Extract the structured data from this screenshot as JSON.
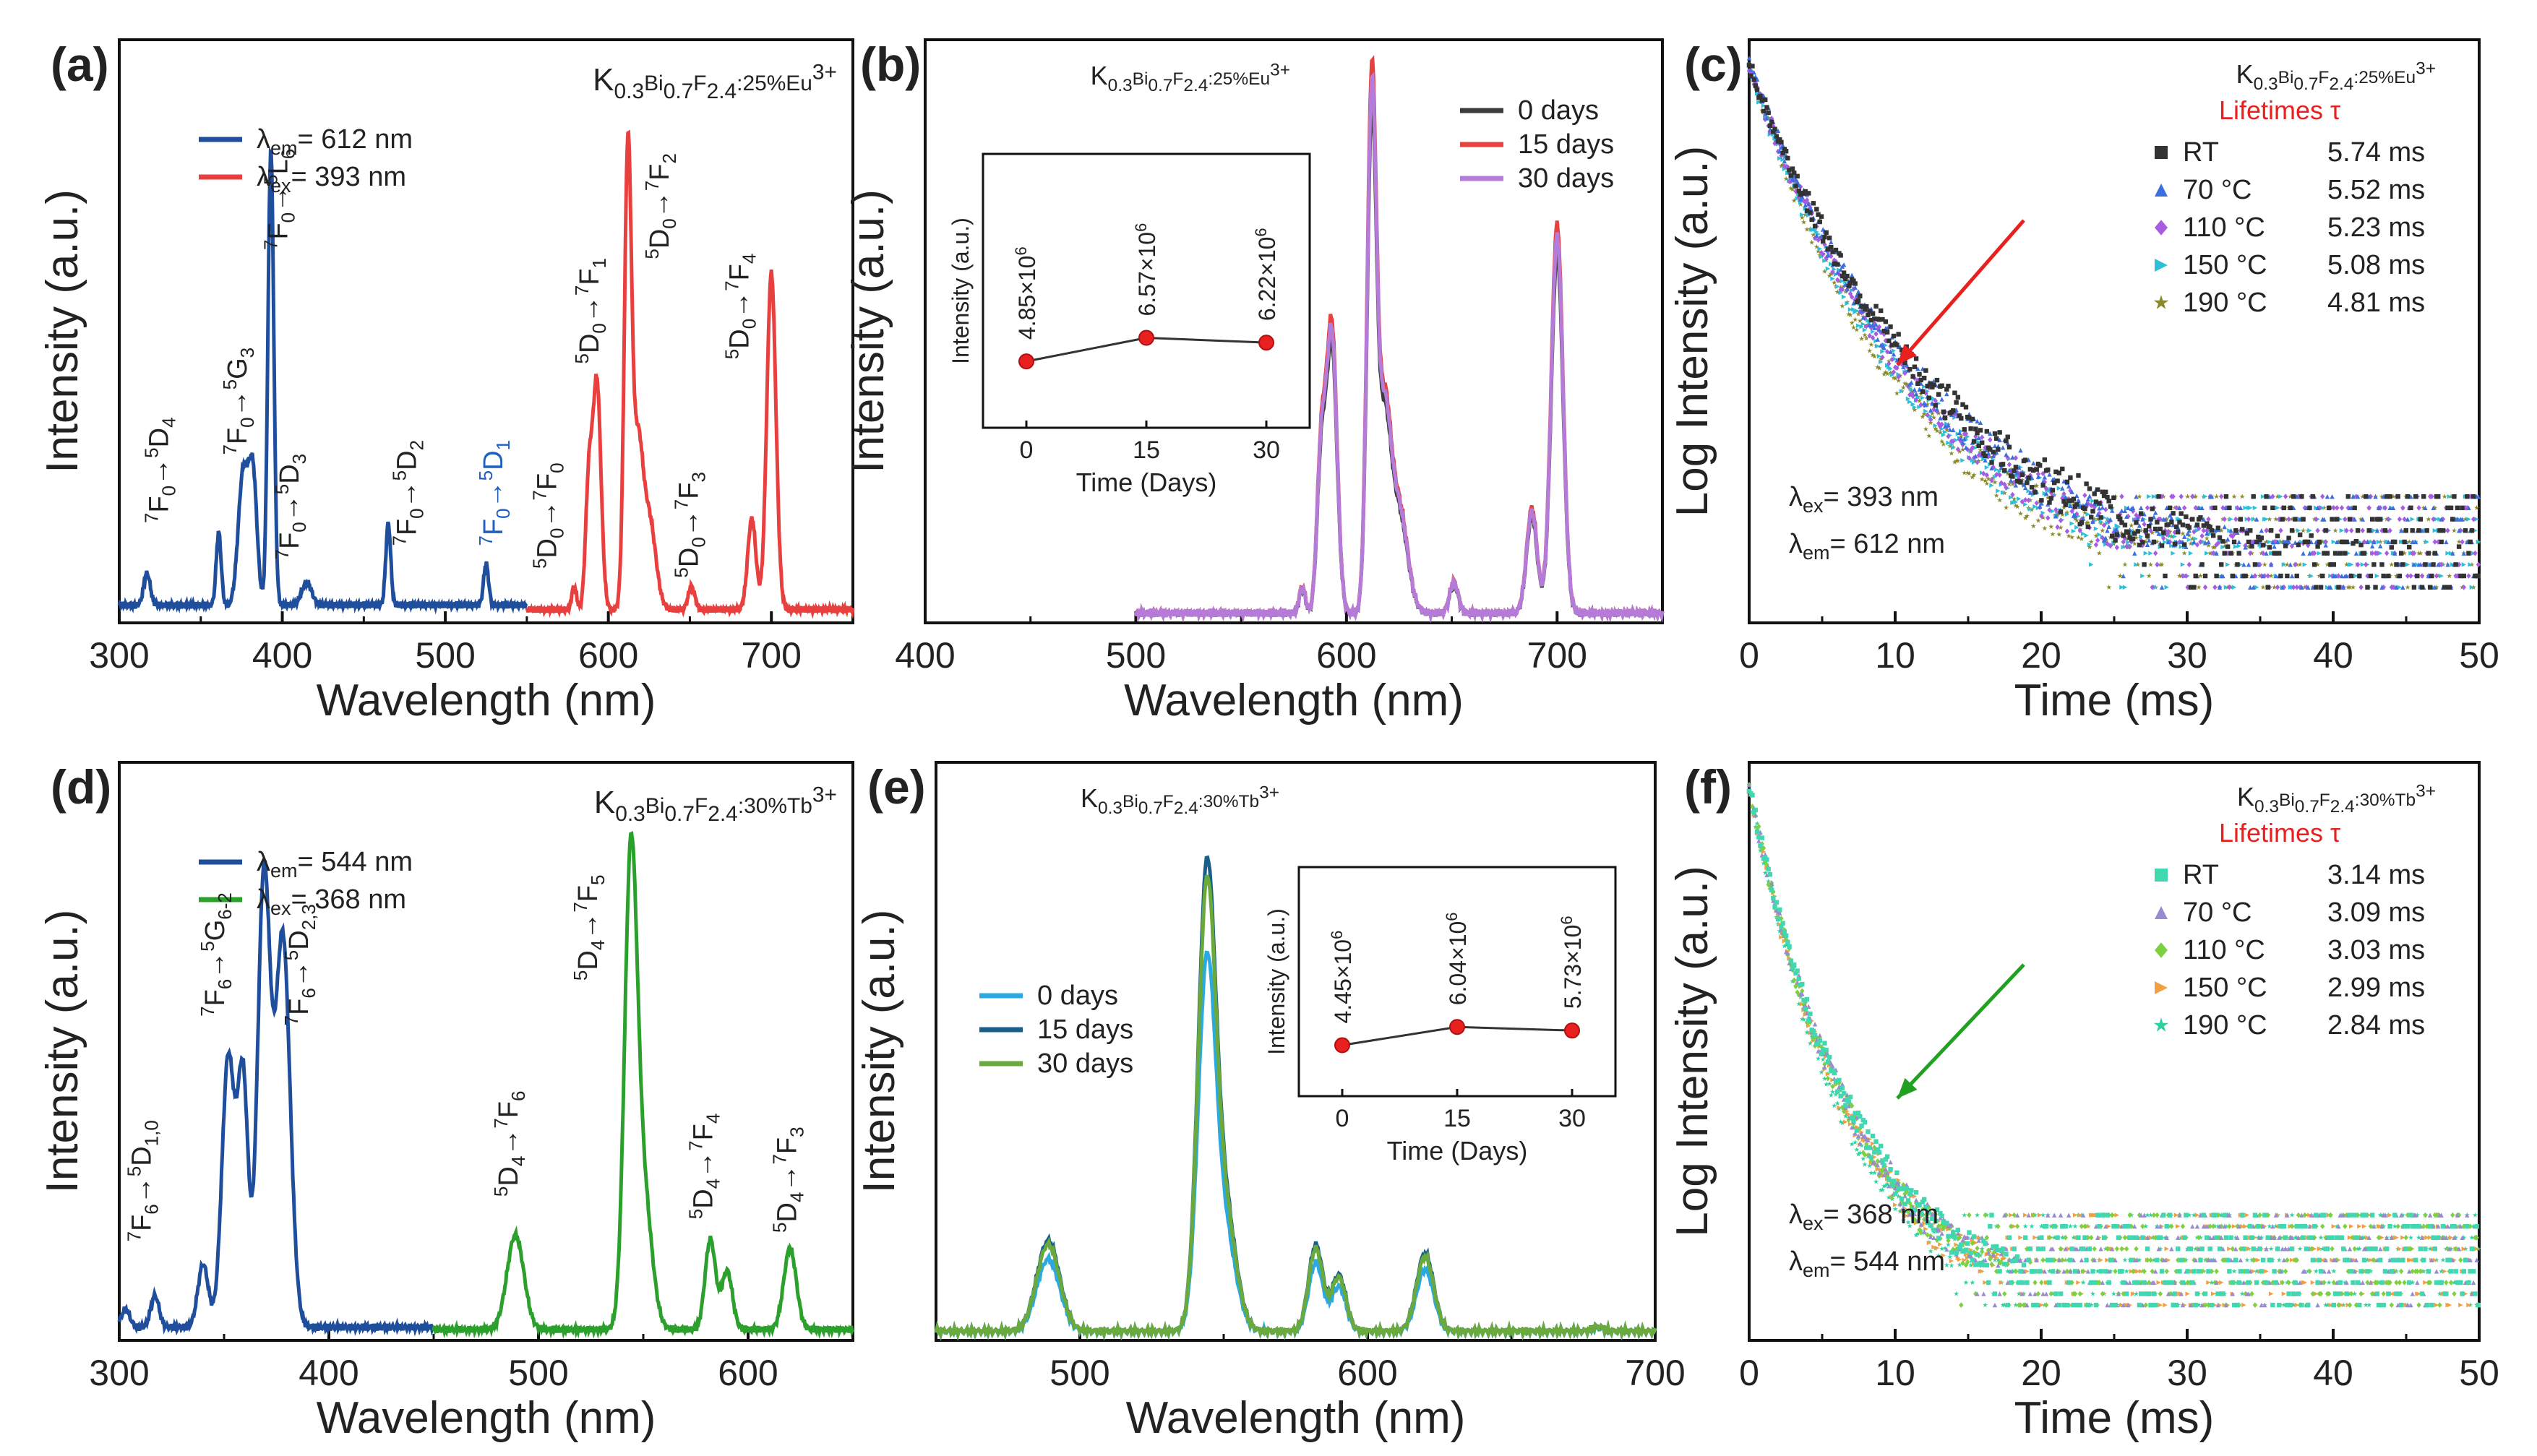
{
  "colors": {
    "eu_em": "#1f4e9c",
    "eu_ex": "#e8403f",
    "d0": "#3c3c3c",
    "d15": "#e8403f",
    "d30": "#b57bd8",
    "tb_em": "#1f4e9c",
    "tb_ex": "#2ca02c",
    "te0": "#2ba9e0",
    "te15": "#1a5f8c",
    "te30": "#6aaa3c",
    "arrow_c": "#e82020",
    "arrow_f": "#22a022",
    "life_title": "#e82020",
    "eu_label_d1": "#1f5fbf"
  },
  "chart_data": [
    {
      "id": "a",
      "type": "line",
      "panel_label": "(a)",
      "xlabel": "Wavelength (nm)",
      "ylabel": "Intensity (a.u.)",
      "xlim": [
        300,
        750
      ],
      "xticks": [
        "300",
        "400",
        "500",
        "600",
        "700"
      ],
      "ylim": [
        0,
        1
      ],
      "sample": {
        "base": "K",
        "s1": "0.3",
        "m": "Bi",
        "s2": "0.7",
        "f": "F",
        "s3": "2.4",
        "dop": ":25%Eu",
        "sup": "3+"
      },
      "legend": [
        {
          "name": "λ",
          "sub": "em",
          "rest": "= 612 nm",
          "color_key": "eu_em"
        },
        {
          "name": "λ",
          "sub": "ex",
          "rest": "= 393 nm",
          "color_key": "eu_ex"
        }
      ],
      "series": [
        {
          "name": "excitation (λem = 612 nm)",
          "color_key": "eu_em",
          "x_range": [
            300,
            550
          ],
          "peaks": [
            [
              317,
              0.07,
              2
            ],
            [
              361,
              0.16,
              1.5
            ],
            [
              376,
              0.29,
              3
            ],
            [
              382,
              0.28,
              2.5
            ],
            [
              393,
              1.0,
              1.8
            ],
            [
              415,
              0.05,
              3
            ],
            [
              465,
              0.18,
              1.5
            ],
            [
              525,
              0.09,
              1.5
            ]
          ],
          "baseline": 0.02
        },
        {
          "name": "emission (λex = 393 nm)",
          "color_key": "eu_ex",
          "x_range": [
            550,
            750
          ],
          "peaks": [
            [
              579,
              0.05,
              1.5
            ],
            [
              588,
              0.27,
              2
            ],
            [
              593,
              0.5,
              2.5
            ],
            [
              612,
              1.0,
              2.2
            ],
            [
              618,
              0.34,
              3
            ],
            [
              625,
              0.2,
              4
            ],
            [
              651,
              0.05,
              2
            ],
            [
              688,
              0.2,
              2.5
            ],
            [
              700,
              0.74,
              2.8
            ]
          ],
          "baseline": 0.01
        }
      ],
      "annotations": [
        {
          "pre": "7",
          "a": "F",
          "as": "0",
          "post": "5",
          "b": "D",
          "bs": "4",
          "x": 330,
          "y": 0.2
        },
        {
          "pre": "7",
          "a": "F",
          "as": "0",
          "post": "5",
          "b": "G",
          "bs": "3",
          "x": 378,
          "y": 0.35
        },
        {
          "pre": "7",
          "a": "F",
          "as": "0",
          "post": "5",
          "b": "L",
          "bs": "6",
          "x": 403,
          "y": 0.8
        },
        {
          "pre": "7",
          "a": "F",
          "as": "0",
          "post": "5",
          "b": "D",
          "bs": "3",
          "x": 410,
          "y": 0.12
        },
        {
          "pre": "7",
          "a": "F",
          "as": "0",
          "post": "5",
          "b": "D",
          "bs": "2",
          "x": 482,
          "y": 0.15
        },
        {
          "pre": "7",
          "a": "F",
          "as": "0",
          "post": "5",
          "b": "D",
          "bs": "1",
          "x": 535,
          "y": 0.15,
          "color_key": "eu_label_d1"
        },
        {
          "pre": "5",
          "a": "D",
          "as": "0",
          "post": "7",
          "b": "F",
          "bs": "0",
          "x": 568,
          "y": 0.1
        },
        {
          "pre": "5",
          "a": "D",
          "as": "0",
          "post": "7",
          "b": "F",
          "bs": "1",
          "x": 594,
          "y": 0.55
        },
        {
          "pre": "5",
          "a": "D",
          "as": "0",
          "post": "7",
          "b": "F",
          "bs": "2",
          "x": 637,
          "y": 0.78
        },
        {
          "pre": "5",
          "a": "D",
          "as": "0",
          "post": "7",
          "b": "F",
          "bs": "3",
          "x": 655,
          "y": 0.08
        },
        {
          "pre": "5",
          "a": "D",
          "as": "0",
          "post": "7",
          "b": "F",
          "bs": "4",
          "x": 686,
          "y": 0.56
        }
      ]
    },
    {
      "id": "b",
      "type": "line",
      "panel_label": "(b)",
      "xlabel": "Wavelength (nm)",
      "ylabel": "Intensity (a.u.)",
      "xlim": [
        400,
        750
      ],
      "xticks": [
        "400",
        "500",
        "600",
        "700"
      ],
      "ylim": [
        0,
        1
      ],
      "sample": {
        "base": "K",
        "s1": "0.3",
        "m": "Bi",
        "s2": "0.7",
        "f": "F",
        "s3": "2.4",
        "dop": ":25%Eu",
        "sup": "3+"
      },
      "legend": [
        "0 days",
        "15 days",
        "30 days"
      ],
      "series": [
        {
          "name": "0 days",
          "color_key": "d0",
          "scale": 0.93
        },
        {
          "name": "15 days",
          "color_key": "d15",
          "scale": 1.0
        },
        {
          "name": "30 days",
          "color_key": "d30",
          "scale": 0.97
        }
      ],
      "x_range": [
        500,
        750
      ],
      "peaks": [
        [
          579,
          0.05,
          1.5
        ],
        [
          588,
          0.3,
          2
        ],
        [
          593,
          0.55,
          2.5
        ],
        [
          612,
          1.0,
          2.2
        ],
        [
          618,
          0.37,
          3
        ],
        [
          625,
          0.2,
          4
        ],
        [
          651,
          0.06,
          2
        ],
        [
          688,
          0.2,
          2.5
        ],
        [
          700,
          0.74,
          2.8
        ]
      ],
      "inset": {
        "type": "line",
        "xlabel": "Time (Days)",
        "ylabel": "Intensity (a.u.)",
        "x": [
          0,
          15,
          30
        ],
        "xticks": [
          "0",
          "15",
          "30"
        ],
        "values": [
          4.85,
          6.57,
          6.22
        ],
        "labels": [
          "4.85×10",
          "6.57×10",
          "6.22×10"
        ],
        "label_sup": "6",
        "ylim": [
          0,
          20
        ]
      }
    },
    {
      "id": "c",
      "type": "scatter",
      "panel_label": "(c)",
      "xlabel": "Time (ms)",
      "ylabel": "Log Intensity (a.u.)",
      "xlim": [
        0,
        50
      ],
      "xticks": [
        "0",
        "10",
        "20",
        "30",
        "40",
        "50"
      ],
      "sample": {
        "base": "K",
        "s1": "0.3",
        "m": "Bi",
        "s2": "0.7",
        "f": "F",
        "s3": "2.4",
        "dop": ":25%Eu",
        "sup": "3+"
      },
      "legend_title": "Lifetimes τ",
      "legend": [
        {
          "name": "RT",
          "value": "5.74 ms",
          "color": "#333333",
          "marker": "square"
        },
        {
          "name": "70 °C",
          "value": "5.52 ms",
          "color": "#3b6fe0",
          "marker": "triangle"
        },
        {
          "name": "110 °C",
          "value": "5.23 ms",
          "color": "#a75de0",
          "marker": "diamond"
        },
        {
          "name": "150 °C",
          "value": "5.08 ms",
          "color": "#2bc0d8",
          "marker": "tri-right"
        },
        {
          "name": "190 °C",
          "value": "4.81 ms",
          "color": "#8a8a2a",
          "marker": "star"
        }
      ],
      "tau": [
        5.74,
        5.52,
        5.23,
        5.08,
        4.81
      ],
      "excitation": {
        "sub": "ex",
        "rest": "= 393 nm"
      },
      "emission": {
        "sub": "em",
        "rest": "= 612 nm"
      }
    },
    {
      "id": "d",
      "type": "line",
      "panel_label": "(d)",
      "xlabel": "Wavelength (nm)",
      "ylabel": "Intensity (a.u.)",
      "xlim": [
        300,
        650
      ],
      "xticks": [
        "300",
        "400",
        "500",
        "600"
      ],
      "ylim": [
        0,
        1
      ],
      "sample": {
        "base": "K",
        "s1": "0.3",
        "m": "Bi",
        "s2": "0.7",
        "f": "F",
        "s3": "2.4",
        "dop": ":30%Tb",
        "sup": "3+"
      },
      "legend": [
        {
          "name": "λ",
          "sub": "em",
          "rest": "= 544 nm",
          "color_key": "tb_em"
        },
        {
          "name": "λ",
          "sub": "ex",
          "rest": "= 368 nm",
          "color_key": "tb_ex"
        }
      ],
      "series": [
        {
          "name": "excitation (λem = 544 nm)",
          "color_key": "tb_em",
          "x_range": [
            300,
            450
          ],
          "peaks": [
            [
              303,
              0.04,
              2
            ],
            [
              317,
              0.07,
              2
            ],
            [
              340,
              0.14,
              2.5
            ],
            [
              352,
              0.6,
              3
            ],
            [
              359,
              0.55,
              2.5
            ],
            [
              369,
              1.0,
              3
            ],
            [
              378,
              0.87,
              3.5
            ]
          ],
          "baseline": 0.01
        },
        {
          "name": "emission (λex = 368 nm)",
          "color_key": "tb_ex",
          "x_range": [
            450,
            650
          ],
          "peaks": [
            [
              489,
              0.21,
              4
            ],
            [
              544,
              1.0,
              3
            ],
            [
              550,
              0.3,
              4
            ],
            [
              582,
              0.2,
              2.5
            ],
            [
              590,
              0.13,
              2.5
            ],
            [
              620,
              0.18,
              3
            ]
          ],
          "baseline": 0.005
        }
      ],
      "annotations": [
        {
          "pre": "7",
          "a": "F",
          "as": "6",
          "post": "5",
          "b": "D",
          "bs": "1,0",
          "x": 315,
          "y": 0.2
        },
        {
          "pre": "7",
          "a": "F",
          "as": "6",
          "post": "5",
          "b": "G",
          "bs": "6-2",
          "x": 350,
          "y": 0.7
        },
        {
          "pre": "7",
          "a": "F",
          "as": "6",
          "post": "5",
          "b": "D",
          "bs": "2,3",
          "x": 390,
          "y": 0.68
        },
        {
          "pre": "5",
          "a": "D",
          "as": "4",
          "post": "7",
          "b": "F",
          "bs": "6",
          "x": 490,
          "y": 0.3
        },
        {
          "pre": "5",
          "a": "D",
          "as": "4",
          "post": "7",
          "b": "F",
          "bs": "5",
          "x": 528,
          "y": 0.78
        },
        {
          "pre": "5",
          "a": "D",
          "as": "4",
          "post": "7",
          "b": "F",
          "bs": "4",
          "x": 583,
          "y": 0.25
        },
        {
          "pre": "5",
          "a": "D",
          "as": "4",
          "post": "7",
          "b": "F",
          "bs": "3",
          "x": 623,
          "y": 0.22
        }
      ]
    },
    {
      "id": "e",
      "type": "line",
      "panel_label": "(e)",
      "xlabel": "Wavelength (nm)",
      "ylabel": "Intensity (a.u.)",
      "xlim": [
        450,
        700
      ],
      "xticks": [
        "500",
        "600",
        "700"
      ],
      "ylim": [
        0,
        1
      ],
      "sample": {
        "base": "K",
        "s1": "0.3",
        "m": "Bi",
        "s2": "0.7",
        "f": "F",
        "s3": "2.4",
        "dop": ":30%Tb",
        "sup": "3+"
      },
      "legend": [
        "0 days",
        "15 days",
        "30 days"
      ],
      "series": [
        {
          "name": "0 days",
          "color_key": "te0",
          "scale": 0.8
        },
        {
          "name": "15 days",
          "color_key": "te15",
          "scale": 1.0
        },
        {
          "name": "30 days",
          "color_key": "te30",
          "scale": 0.96
        }
      ],
      "x_range": [
        450,
        700
      ],
      "peaks": [
        [
          489,
          0.21,
          4
        ],
        [
          544,
          1.0,
          3
        ],
        [
          550,
          0.3,
          4
        ],
        [
          582,
          0.2,
          2.5
        ],
        [
          590,
          0.13,
          2.5
        ],
        [
          620,
          0.18,
          3
        ],
        [
          680,
          0.01,
          2
        ]
      ],
      "inset": {
        "type": "line",
        "xlabel": "Time (Days)",
        "ylabel": "Intensity (a.u.)",
        "x": [
          0,
          15,
          30
        ],
        "xticks": [
          "0",
          "15",
          "30"
        ],
        "values": [
          4.45,
          6.04,
          5.73
        ],
        "labels": [
          "4.45×10",
          "6.04×10",
          "5.73×10"
        ],
        "label_sup": "6",
        "ylim": [
          0,
          20
        ]
      }
    },
    {
      "id": "f",
      "type": "scatter",
      "panel_label": "(f)",
      "xlabel": "Time (ms)",
      "ylabel": "Log Intensity (a.u.)",
      "xlim": [
        0,
        50
      ],
      "xticks": [
        "0",
        "10",
        "20",
        "30",
        "40",
        "50"
      ],
      "sample": {
        "base": "K",
        "s1": "0.3",
        "m": "Bi",
        "s2": "0.7",
        "f": "F",
        "s3": "2.4",
        "dop": ":30%Tb",
        "sup": "3+"
      },
      "legend_title": "Lifetimes τ",
      "legend": [
        {
          "name": "RT",
          "value": "3.14 ms",
          "color": "#40d8b0",
          "marker": "square"
        },
        {
          "name": "70 °C",
          "value": "3.09 ms",
          "color": "#9a8ad0",
          "marker": "triangle"
        },
        {
          "name": "110 °C",
          "value": "3.03 ms",
          "color": "#7fd040",
          "marker": "diamond"
        },
        {
          "name": "150 °C",
          "value": "2.99 ms",
          "color": "#f0a040",
          "marker": "tri-right"
        },
        {
          "name": "190 °C",
          "value": "2.84 ms",
          "color": "#30d0a0",
          "marker": "star"
        }
      ],
      "tau": [
        3.14,
        3.09,
        3.03,
        2.99,
        2.84
      ],
      "excitation": {
        "sub": "ex",
        "rest": "= 368 nm"
      },
      "emission": {
        "sub": "em",
        "rest": "= 544 nm"
      }
    }
  ]
}
